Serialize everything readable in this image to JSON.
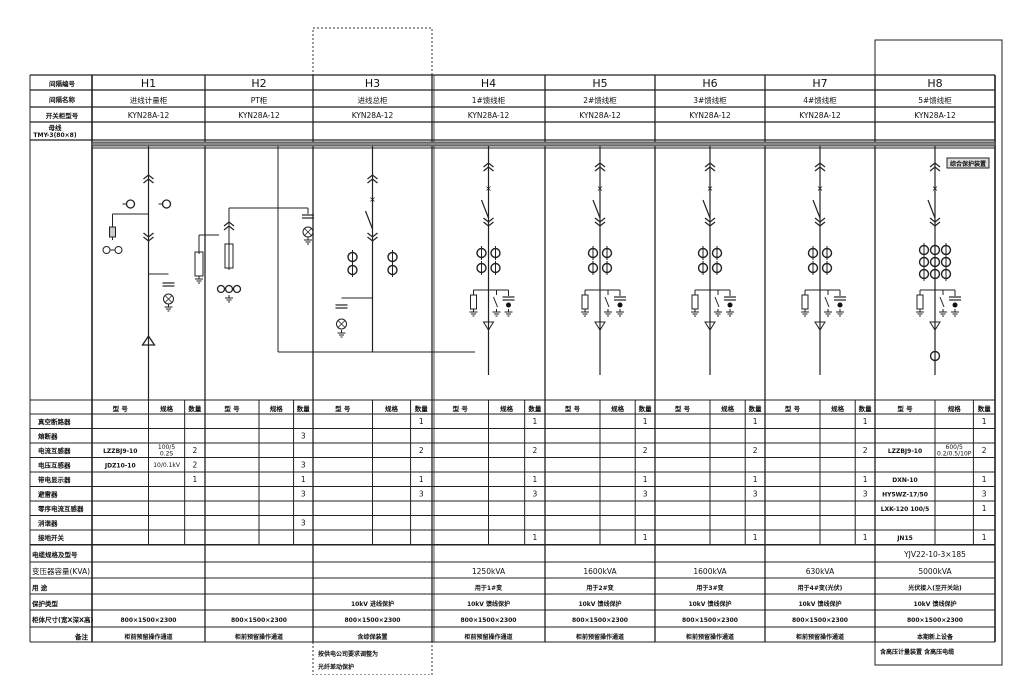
{
  "row_labels": {
    "bay_no": "间隔编号",
    "bay_name": "间隔名称",
    "cabinet_model": "开关柜型号",
    "busbar": "母线",
    "busbar_spec": "TMY-3(80×8)",
    "col_model": "型 号",
    "col_spec": "规格",
    "col_qty": "数量",
    "components": [
      "真空断路器",
      "熔断器",
      "电流互感器",
      "电压互感器",
      "带电显示器",
      "避雷器",
      "零序电流互感器",
      "消谐器",
      "接地开关"
    ],
    "cable": "电缆规格及型号",
    "transformer": "变压器容量(KVA)",
    "usage": "用 途",
    "protection": "保护类型",
    "size": "柜体尺寸(宽X深X高)",
    "remark": "备注"
  },
  "bays": [
    {
      "id": "H1",
      "name": "进线计量柜",
      "model": "KYN28A-12",
      "components": [
        [
          "",
          "",
          ""
        ],
        [
          "",
          "",
          ""
        ],
        [
          "LZZBJ9-10",
          "100/5 0.2S",
          "2"
        ],
        [
          "JDZ10-10",
          "10/0.1kV",
          "2"
        ],
        [
          "",
          "",
          "1"
        ],
        [
          "",
          "",
          ""
        ],
        [
          "",
          "",
          ""
        ],
        [
          "",
          "",
          ""
        ],
        [
          "",
          "",
          ""
        ]
      ],
      "cable": "",
      "transformer": "",
      "usage": "",
      "protection": "",
      "size": "800×1500×2300",
      "remark": "柜前预留操作通道"
    },
    {
      "id": "H2",
      "name": "PT柜",
      "model": "KYN28A-12",
      "components": [
        [
          "",
          "",
          ""
        ],
        [
          "",
          "",
          "3"
        ],
        [
          "",
          "",
          ""
        ],
        [
          "",
          "",
          "3"
        ],
        [
          "",
          "",
          "1"
        ],
        [
          "",
          "",
          "3"
        ],
        [
          "",
          "",
          ""
        ],
        [
          "",
          "",
          "3"
        ],
        [
          "",
          "",
          ""
        ]
      ],
      "cable": "",
      "transformer": "",
      "usage": "",
      "protection": "",
      "size": "800×1500×2300",
      "remark": "柜前预留操作通道"
    },
    {
      "id": "H3",
      "name": "进线总柜",
      "model": "KYN28A-12",
      "components": [
        [
          "",
          "",
          "1"
        ],
        [
          "",
          "",
          ""
        ],
        [
          "",
          "",
          "2"
        ],
        [
          "",
          "",
          ""
        ],
        [
          "",
          "",
          "1"
        ],
        [
          "",
          "",
          "3"
        ],
        [
          "",
          "",
          ""
        ],
        [
          "",
          "",
          ""
        ],
        [
          "",
          "",
          ""
        ]
      ],
      "cable": "",
      "transformer": "",
      "usage": "",
      "protection": "10kV 进线保护",
      "size": "800×1500×2300",
      "remark": "含综保装置"
    },
    {
      "id": "H4",
      "name": "1#馈线柜",
      "model": "KYN28A-12",
      "components": [
        [
          "",
          "",
          "1"
        ],
        [
          "",
          "",
          ""
        ],
        [
          "",
          "",
          "2"
        ],
        [
          "",
          "",
          ""
        ],
        [
          "",
          "",
          "1"
        ],
        [
          "",
          "",
          "3"
        ],
        [
          "",
          "",
          ""
        ],
        [
          "",
          "",
          ""
        ],
        [
          "",
          "",
          "1"
        ]
      ],
      "cable": "",
      "transformer": "1250kVA",
      "usage": "用于1#变",
      "protection": "10kV 馈线保护",
      "size": "800×1500×2300",
      "remark": "柜前预留操作通道"
    },
    {
      "id": "H5",
      "name": "2#馈线柜",
      "model": "KYN28A-12",
      "components": [
        [
          "",
          "",
          "1"
        ],
        [
          "",
          "",
          ""
        ],
        [
          "",
          "",
          "2"
        ],
        [
          "",
          "",
          ""
        ],
        [
          "",
          "",
          "1"
        ],
        [
          "",
          "",
          "3"
        ],
        [
          "",
          "",
          ""
        ],
        [
          "",
          "",
          ""
        ],
        [
          "",
          "",
          "1"
        ]
      ],
      "cable": "",
      "transformer": "1600kVA",
      "usage": "用于2#变",
      "protection": "10kV 馈线保护",
      "size": "800×1500×2300",
      "remark": "柜前预留操作通道"
    },
    {
      "id": "H6",
      "name": "3#馈线柜",
      "model": "KYN28A-12",
      "components": [
        [
          "",
          "",
          "1"
        ],
        [
          "",
          "",
          ""
        ],
        [
          "",
          "",
          "2"
        ],
        [
          "",
          "",
          ""
        ],
        [
          "",
          "",
          "1"
        ],
        [
          "",
          "",
          "3"
        ],
        [
          "",
          "",
          ""
        ],
        [
          "",
          "",
          ""
        ],
        [
          "",
          "",
          "1"
        ]
      ],
      "cable": "",
      "transformer": "1600kVA",
      "usage": "用于3#变",
      "protection": "10kV 馈线保护",
      "size": "800×1500×2300",
      "remark": "柜前预留操作通道"
    },
    {
      "id": "H7",
      "name": "4#馈线柜",
      "model": "KYN28A-12",
      "components": [
        [
          "",
          "",
          "1"
        ],
        [
          "",
          "",
          ""
        ],
        [
          "",
          "",
          "2"
        ],
        [
          "",
          "",
          ""
        ],
        [
          "",
          "",
          "1"
        ],
        [
          "",
          "",
          "3"
        ],
        [
          "",
          "",
          ""
        ],
        [
          "",
          "",
          ""
        ],
        [
          "",
          "",
          "1"
        ]
      ],
      "cable": "",
      "transformer": "630kVA",
      "usage": "用于4#变(光伏)",
      "protection": "10kV 馈线保护",
      "size": "800×1500×2300",
      "remark": "柜前预留操作通道"
    },
    {
      "id": "H8",
      "name": "5#馈线柜",
      "model": "KYN28A-12",
      "components": [
        [
          "",
          "",
          "1"
        ],
        [
          "",
          "",
          ""
        ],
        [
          "LZZBJ9-10",
          "600/5 0.2/0.5/10P",
          "2"
        ],
        [
          "",
          "",
          ""
        ],
        [
          "DXN-10",
          "",
          "1"
        ],
        [
          "HY5WZ-17/50",
          "",
          "3"
        ],
        [
          "LXK-120 100/5",
          "",
          "1"
        ],
        [
          "",
          "",
          ""
        ],
        [
          "JN15",
          "",
          "1"
        ]
      ],
      "cable": "YJV22-10-3×185",
      "transformer": "5000kVA",
      "usage": "光伏接入(至开关站)",
      "protection": "10kV 馈线保护",
      "size": "800×1500×2300",
      "remark": "本期新上设备"
    }
  ],
  "notes": {
    "h3_note_1": "按供电公司要求调整为",
    "h3_note_2": "光纤差动保护",
    "h8_note": "含高压计量装置 含高压电缆",
    "h8_tag": "综合保护装置"
  }
}
